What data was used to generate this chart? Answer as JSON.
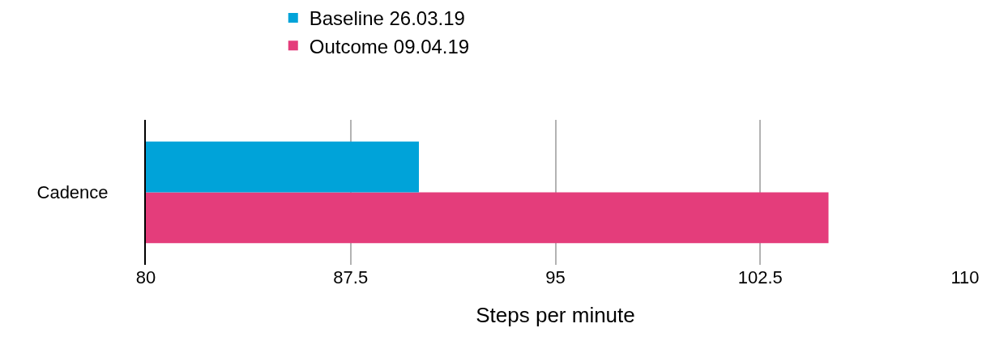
{
  "chart_data": {
    "type": "bar",
    "orientation": "horizontal",
    "xlabel": "Steps per minute",
    "categories": [
      "Cadence"
    ],
    "series": [
      {
        "name": "Baseline 26.03.19",
        "color": "#00a3d9",
        "values": [
          90
        ]
      },
      {
        "name": "Outcome 09.04.19",
        "color": "#e43d7b",
        "values": [
          105
        ]
      }
    ],
    "xlim": [
      80,
      110
    ],
    "xticks": [
      80,
      87.5,
      95,
      102.5,
      110
    ],
    "grid": "x",
    "legend": "top"
  }
}
